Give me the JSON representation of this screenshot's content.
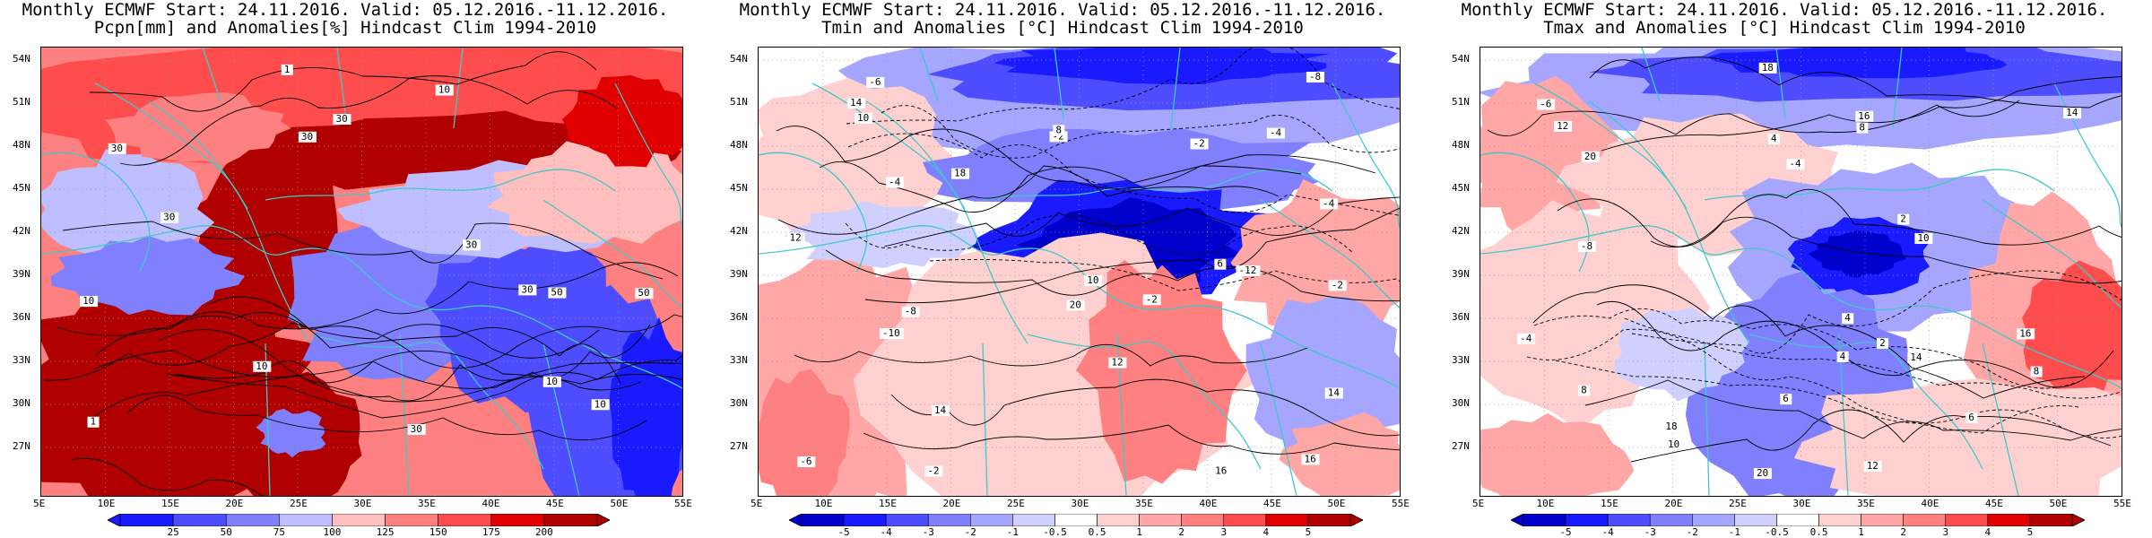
{
  "panels": [
    {
      "title_line1": "Monthly ECMWF Start: 24.11.2016. Valid: 05.12.2016.-11.12.2016.",
      "title_line2": "Pcpn[mm] and Anomalies[%] Hindcast Clim 1994-2010",
      "colorbar_labels": [
        "25",
        "50",
        "75",
        "100",
        "125",
        "150",
        "175",
        "200"
      ],
      "colors": [
        "#1a1aff",
        "#4d4dff",
        "#8080ff",
        "#bfbfff",
        "#ffbfbf",
        "#ff8080",
        "#ff4d4d",
        "#e00000",
        "#b00000"
      ],
      "contour_labels": [
        "30",
        "30",
        "10",
        "30",
        "50",
        "30",
        "10",
        "30",
        "10",
        "1",
        "1",
        "10",
        "10",
        "30",
        "30",
        "50"
      ],
      "scheme": "precip"
    },
    {
      "title_line1": "Monthly ECMWF Start: 24.11.2016. Valid: 05.12.2016.-11.12.2016.",
      "title_line2": "Tmin and Anomalies [°C] Hindcast Clim 1994-2010",
      "colorbar_labels": [
        "-5",
        "-4",
        "-3",
        "-2",
        "-1",
        "-0.5",
        "0.5",
        "1",
        "2",
        "3",
        "4",
        "5"
      ],
      "colors": [
        "#0000cc",
        "#1a1aff",
        "#4d4dff",
        "#8080ff",
        "#a6a6ff",
        "#d0d0ff",
        "#ffffff",
        "#ffd0d0",
        "#ffa6a6",
        "#ff8080",
        "#ff4d4d",
        "#e00000",
        "#b00000"
      ],
      "contour_labels": [
        "-10",
        "-8",
        "-6",
        "-4",
        "-2",
        "-2",
        "-4",
        "-6",
        "-8",
        "-12",
        "-2",
        "-2",
        "16",
        "14",
        "12",
        "10",
        "8",
        "6",
        "18",
        "16",
        "14",
        "12",
        "10",
        "20",
        "14",
        "-2",
        "-4"
      ],
      "scheme": "tmin"
    },
    {
      "title_line1": "Monthly ECMWF Start: 24.11.2016. Valid: 05.12.2016.-11.12.2016.",
      "title_line2": "Tmax and Anomalies [°C] Hindcast Clim 1994-2010",
      "colorbar_labels": [
        "-5",
        "-4",
        "-3",
        "-2",
        "-1",
        "-0.5",
        "0.5",
        "1",
        "2",
        "3",
        "4",
        "5"
      ],
      "colors": [
        "#0000cc",
        "#1a1aff",
        "#4d4dff",
        "#8080ff",
        "#a6a6ff",
        "#d0d0ff",
        "#ffffff",
        "#ffd0d0",
        "#ffa6a6",
        "#ff8080",
        "#ff4d4d",
        "#e00000",
        "#b00000"
      ],
      "contour_labels": [
        "-4",
        "-8",
        "-6",
        "-4",
        "2",
        "4",
        "6",
        "8",
        "10",
        "12",
        "14",
        "16",
        "18",
        "20",
        "4",
        "2",
        "8",
        "10",
        "12",
        "14",
        "16",
        "18",
        "20",
        "8",
        "6",
        "4"
      ],
      "scheme": "tmax"
    }
  ],
  "lat_labels": [
    "54N",
    "51N",
    "48N",
    "45N",
    "42N",
    "39N",
    "36N",
    "33N",
    "30N",
    "27N"
  ],
  "lon_labels": [
    "5E",
    "10E",
    "15E",
    "20E",
    "25E",
    "30E",
    "35E",
    "40E",
    "45E",
    "50E",
    "55E"
  ],
  "map_style": {
    "coastline_color": "#40c8c8",
    "contour_color": "#000000",
    "grid_color": "#999999"
  }
}
